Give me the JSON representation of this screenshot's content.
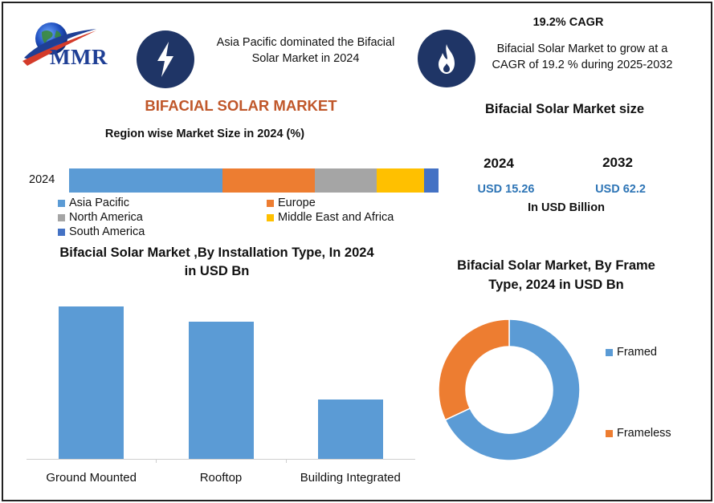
{
  "logo": {
    "text": "MMR"
  },
  "header": {
    "left_text": "Asia Pacific dominated the Bifacial Solar Market in 2024",
    "cagr_title": "19.2% CAGR",
    "cagr_text": "Bifacial Solar Market to grow at a CAGR of 19.2 % during 2025-2032",
    "icon_left": "lightning-icon",
    "icon_right": "flame-icon"
  },
  "main_title": "BIFACIAL SOLAR MARKET",
  "market_size": {
    "title": "Bifacial Solar Market size",
    "year1": "2024",
    "year2": "2032",
    "value1": "USD 15.26",
    "value2": "USD 62.2",
    "unit": "In USD Billion"
  },
  "chart_data": [
    {
      "type": "bar",
      "orientation": "horizontal-stacked",
      "title": "Region wise Market Size in 2024 (%)",
      "categories": [
        "2024"
      ],
      "series": [
        {
          "name": "Asia Pacific",
          "values": [
            41.5
          ],
          "color": "#5b9bd5"
        },
        {
          "name": "Europe",
          "values": [
            25.0
          ],
          "color": "#ed7d31"
        },
        {
          "name": "North America",
          "values": [
            16.8
          ],
          "color": "#a5a5a5"
        },
        {
          "name": "Middle East and Africa",
          "values": [
            12.7
          ],
          "color": "#ffc000"
        },
        {
          "name": "South America",
          "values": [
            4.0
          ],
          "color": "#4472c4"
        }
      ],
      "legend": "bottom"
    },
    {
      "type": "bar",
      "title": "Bifacial Solar Market ,By Installation Type, In 2024 in USD Bn",
      "categories": [
        "Ground Mounted",
        "Rooftop",
        "Building Integrated"
      ],
      "values": [
        100,
        90,
        39
      ],
      "color": "#5b9bd5",
      "ylim": [
        0,
        100
      ]
    },
    {
      "type": "pie",
      "style": "donut",
      "title": "Bifacial Solar Market, By Frame Type, 2024 in USD Bn",
      "categories": [
        "Framed",
        "Frameless"
      ],
      "values": [
        68,
        32
      ],
      "colors": [
        "#5b9bd5",
        "#ed7d31"
      ],
      "legend": "right"
    }
  ]
}
